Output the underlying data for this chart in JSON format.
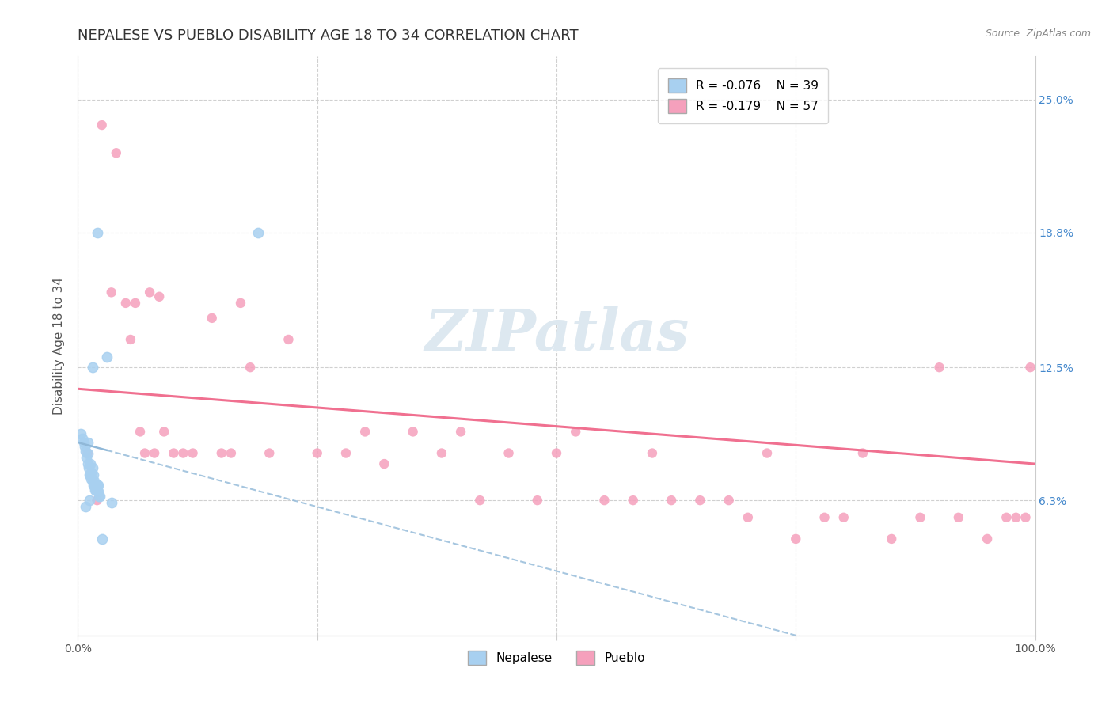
{
  "title": "NEPALESE VS PUEBLO DISABILITY AGE 18 TO 34 CORRELATION CHART",
  "source_text": "Source: ZipAtlas.com",
  "ylabel": "Disability Age 18 to 34",
  "xlim": [
    0.0,
    100.0
  ],
  "ylim": [
    0.0,
    27.0
  ],
  "yticks": [
    0.0,
    6.3,
    12.5,
    18.8,
    25.0
  ],
  "ytick_labels": [
    "",
    "6.3%",
    "12.5%",
    "18.8%",
    "25.0%"
  ],
  "xticks": [
    0.0,
    25.0,
    50.0,
    75.0,
    100.0
  ],
  "xtick_labels": [
    "0.0%",
    "",
    "",
    "",
    "100.0%"
  ],
  "nepalese_R": -0.076,
  "nepalese_N": 39,
  "pueblo_R": -0.179,
  "pueblo_N": 57,
  "nepalese_color": "#a8d0f0",
  "pueblo_color": "#f5a0bc",
  "nepalese_line_color": "#90b8d8",
  "pueblo_line_color": "#f07090",
  "background_color": "#ffffff",
  "watermark_text": "ZIPatlas",
  "title_fontsize": 13,
  "nepalese_x": [
    0.3,
    0.5,
    0.6,
    0.7,
    0.8,
    0.9,
    1.0,
    1.0,
    1.1,
    1.2,
    1.3,
    1.3,
    1.4,
    1.4,
    1.5,
    1.5,
    1.6,
    1.6,
    1.7,
    1.7,
    1.8,
    1.8,
    1.9,
    1.9,
    2.0,
    2.0,
    2.1,
    2.1,
    2.2,
    2.3,
    2.5,
    3.0,
    2.0,
    18.8,
    3.5,
    0.8,
    1.2,
    1.5,
    1.0
  ],
  "nepalese_y": [
    9.4,
    9.2,
    9.0,
    8.8,
    8.6,
    8.3,
    8.0,
    8.5,
    7.8,
    7.5,
    7.5,
    8.0,
    7.3,
    7.6,
    7.2,
    7.8,
    7.0,
    7.5,
    7.2,
    7.0,
    7.0,
    6.8,
    6.8,
    7.0,
    6.8,
    7.0,
    6.7,
    7.0,
    6.5,
    6.5,
    4.5,
    13.0,
    18.8,
    18.8,
    6.2,
    6.0,
    6.3,
    12.5,
    9.0
  ],
  "pueblo_x": [
    2.5,
    3.5,
    4.0,
    5.0,
    5.5,
    6.0,
    6.5,
    7.0,
    7.5,
    8.0,
    8.5,
    9.0,
    10.0,
    11.0,
    12.0,
    14.0,
    15.0,
    16.0,
    17.0,
    18.0,
    20.0,
    22.0,
    25.0,
    28.0,
    30.0,
    32.0,
    35.0,
    38.0,
    40.0,
    42.0,
    45.0,
    48.0,
    50.0,
    52.0,
    55.0,
    58.0,
    60.0,
    62.0,
    65.0,
    68.0,
    70.0,
    72.0,
    75.0,
    78.0,
    80.0,
    82.0,
    85.0,
    88.0,
    90.0,
    92.0,
    95.0,
    97.0,
    98.0,
    99.0,
    99.5,
    1.0,
    2.0
  ],
  "pueblo_y": [
    23.8,
    16.0,
    22.5,
    15.5,
    13.8,
    15.5,
    9.5,
    8.5,
    16.0,
    8.5,
    15.8,
    9.5,
    8.5,
    8.5,
    8.5,
    14.8,
    8.5,
    8.5,
    15.5,
    12.5,
    8.5,
    13.8,
    8.5,
    8.5,
    9.5,
    8.0,
    9.5,
    8.5,
    9.5,
    6.3,
    8.5,
    6.3,
    8.5,
    9.5,
    6.3,
    6.3,
    8.5,
    6.3,
    6.3,
    6.3,
    5.5,
    8.5,
    4.5,
    5.5,
    5.5,
    8.5,
    4.5,
    5.5,
    12.5,
    5.5,
    4.5,
    5.5,
    5.5,
    5.5,
    12.5,
    8.5,
    6.3
  ]
}
